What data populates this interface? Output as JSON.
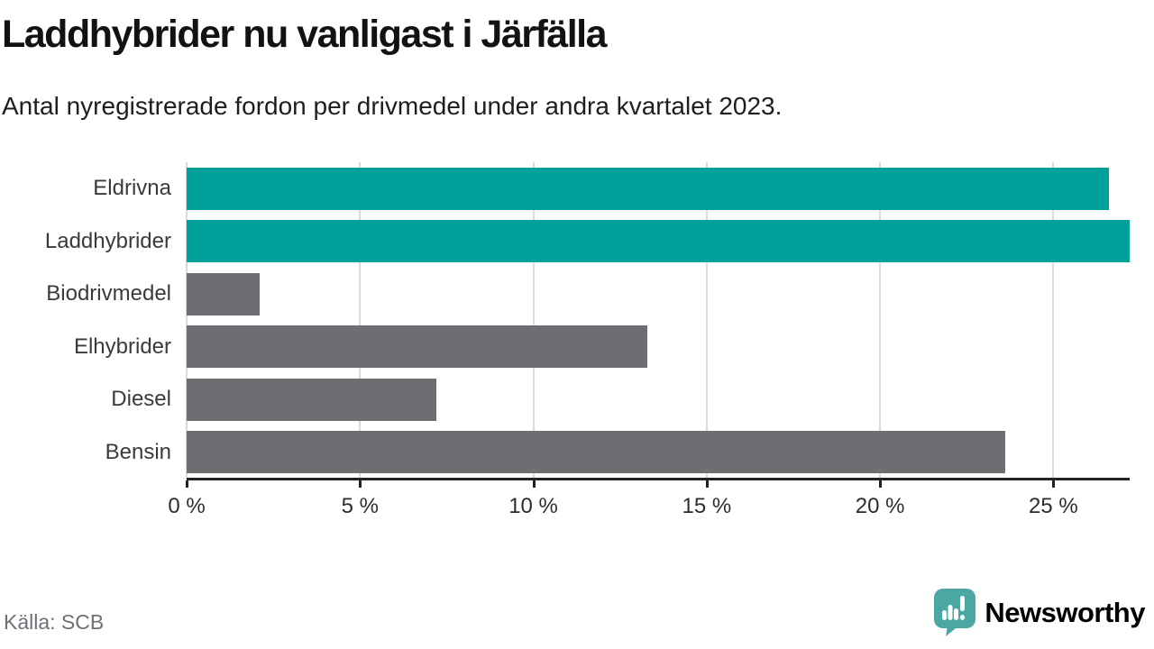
{
  "chart_data": {
    "type": "bar",
    "orientation": "horizontal",
    "title": "Laddhybrider nu vanligast i Järfälla",
    "subtitle": "Antal nyregistrerade fordon per drivmedel under andra kvartalet 2023.",
    "categories": [
      "Eldrivna",
      "Laddhybrider",
      "Biodrivmedel",
      "Elhybrider",
      "Diesel",
      "Bensin"
    ],
    "values": [
      26.6,
      27.2,
      2.1,
      13.3,
      7.2,
      23.6
    ],
    "unit": "%",
    "xlim": [
      0,
      27.2
    ],
    "x_ticks": [
      0,
      5,
      10,
      15,
      20,
      25
    ],
    "x_tick_labels": [
      "0 %",
      "5 %",
      "10 %",
      "15 %",
      "20 %",
      "25 %"
    ],
    "grid": true,
    "legend": false,
    "highlighted_categories": [
      "Eldrivna",
      "Laddhybrider"
    ],
    "highlight_color": "#00a09a",
    "default_color": "#6d6d72",
    "bar_colors": [
      "#00a09a",
      "#00a09a",
      "#6d6d72",
      "#6d6d72",
      "#6d6d72",
      "#6d6d72"
    ],
    "gridline_color": "#dadada",
    "axis_color": "#222222"
  },
  "footer": {
    "source": "Källa: SCB",
    "brand_name": "Newsworthy",
    "brand_color": "#45a5a0"
  }
}
